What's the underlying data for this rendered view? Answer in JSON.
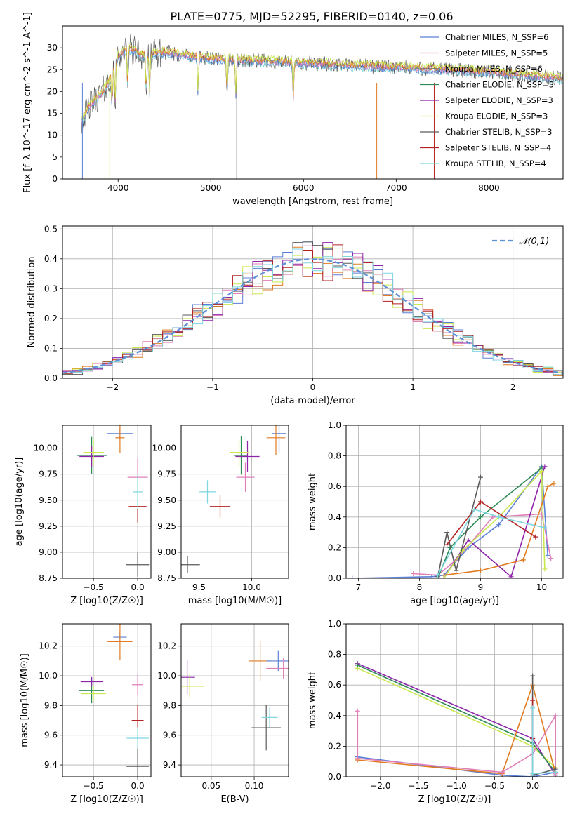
{
  "figure_title": "PLATE=0775, MJD=52295, FIBERID=0140, z=0.06",
  "colors": {
    "chabrier_miles": "#5b7fd6",
    "salpeter_miles": "#e07fb8",
    "kroupa_miles": "#555555",
    "chabrier_elodie": "#2e8b57",
    "salpeter_elodie": "#8e24aa",
    "kroupa_elodie": "#c9e84f",
    "chabrier_stelib": "#5a5a5a",
    "salpeter_stelib": "#b22222",
    "kroupa_stelib": "#7fd6e0",
    "orange": "#e07b22",
    "grid": "#b0b0b0"
  },
  "chart_data": [
    {
      "id": "spectrum",
      "type": "line",
      "xlabel": "wavelength [Angstrom, rest frame]",
      "ylabel": "Flux [f_λ 10^-17 erg cm^-2 s^-1 A^-1]",
      "xlim": [
        3400,
        8800
      ],
      "ylim": [
        0,
        35
      ],
      "xticks": [
        4000,
        5000,
        6000,
        7000,
        8000
      ],
      "yticks": [
        0,
        5,
        10,
        15,
        20,
        25,
        30
      ],
      "grid": false,
      "legend_position": "right",
      "legend": [
        "Chabrier MILES, N_SSP=6",
        "Salpeter MILES, N_SSP=5",
        "Kroupa MILES, N_SSP=6",
        "Chabrier ELODIE, N_SSP=3",
        "Salpeter ELODIE, N_SSP=3",
        "Kroupa ELODIE, N_SSP=3",
        "Chabrier STELIB, N_SSP=3",
        "Salpeter STELIB, N_SSP=4",
        "Kroupa STELIB, N_SSP=4"
      ],
      "continuum": [
        [
          3600,
          13
        ],
        [
          3700,
          17
        ],
        [
          3800,
          19
        ],
        [
          3900,
          22
        ],
        [
          4000,
          28
        ],
        [
          4100,
          30
        ],
        [
          4300,
          28
        ],
        [
          4500,
          29
        ],
        [
          4800,
          28
        ],
        [
          5000,
          27.5
        ],
        [
          5500,
          27
        ],
        [
          6000,
          26.5
        ],
        [
          6500,
          26
        ],
        [
          7000,
          25.5
        ],
        [
          7500,
          25
        ],
        [
          8000,
          24.5
        ],
        [
          8500,
          23.5
        ],
        [
          8800,
          23
        ]
      ]
    },
    {
      "id": "residual_histogram",
      "type": "line",
      "xlabel": "(data-model)/error",
      "ylabel": "Normed distribution",
      "xlim": [
        -2.5,
        2.5
      ],
      "ylim": [
        0,
        0.51
      ],
      "xticks": [
        -2,
        -1,
        0,
        1,
        2
      ],
      "yticks": [
        0.0,
        0.1,
        0.2,
        0.3,
        0.4,
        0.5
      ],
      "grid": true,
      "legend_position": "top-right",
      "legend": [
        "𝒩(0,1)"
      ],
      "reference_curve": "N(0,1)"
    },
    {
      "id": "age_vs_Z",
      "type": "scatter",
      "xlabel": "Z [log10(Z/Z☉)]",
      "ylabel": "age  [log10(age/yr)]",
      "xlim": [
        -0.85,
        0.15
      ],
      "ylim": [
        8.75,
        10.22
      ],
      "xticks": [
        -0.5,
        0.0
      ],
      "yticks": [
        8.75,
        9.0,
        9.25,
        9.5,
        9.75,
        10.0
      ],
      "grid": true,
      "points": [
        {
          "x": -0.2,
          "y": 10.14,
          "color": "chabrier_miles"
        },
        {
          "x": 0.0,
          "y": 9.72,
          "color": "salpeter_miles"
        },
        {
          "x": -0.52,
          "y": 9.93,
          "color": "chabrier_elodie"
        },
        {
          "x": -0.52,
          "y": 9.92,
          "color": "salpeter_elodie"
        },
        {
          "x": -0.5,
          "y": 9.96,
          "color": "kroupa_elodie"
        },
        {
          "x": -0.2,
          "y": 10.1,
          "color": "orange"
        },
        {
          "x": 0.0,
          "y": 8.88,
          "color": "chabrier_stelib"
        },
        {
          "x": 0.0,
          "y": 9.44,
          "color": "salpeter_stelib"
        },
        {
          "x": 0.0,
          "y": 9.58,
          "color": "kroupa_stelib"
        }
      ]
    },
    {
      "id": "age_vs_mass",
      "type": "scatter",
      "xlabel": "mass [log10(M/M☉)]",
      "ylabel": "",
      "xlim": [
        9.33,
        10.35
      ],
      "ylim": [
        8.75,
        10.22
      ],
      "xticks": [
        9.5,
        10.0
      ],
      "yticks": [
        8.75,
        9.0,
        9.25,
        9.5,
        9.75,
        10.0
      ],
      "grid": true,
      "points": [
        {
          "x": 10.26,
          "y": 10.14,
          "color": "chabrier_miles"
        },
        {
          "x": 9.94,
          "y": 9.72,
          "color": "salpeter_miles"
        },
        {
          "x": 9.9,
          "y": 9.93,
          "color": "chabrier_elodie"
        },
        {
          "x": 9.96,
          "y": 9.92,
          "color": "salpeter_elodie"
        },
        {
          "x": 9.88,
          "y": 9.96,
          "color": "kroupa_elodie"
        },
        {
          "x": 10.23,
          "y": 10.1,
          "color": "orange"
        },
        {
          "x": 9.39,
          "y": 8.88,
          "color": "chabrier_stelib"
        },
        {
          "x": 9.7,
          "y": 9.44,
          "color": "salpeter_stelib"
        },
        {
          "x": 9.58,
          "y": 9.58,
          "color": "kroupa_stelib"
        }
      ]
    },
    {
      "id": "massweight_vs_age",
      "type": "line",
      "xlabel": "age  [log10(age/yr)]",
      "ylabel": "mass weight",
      "xlim": [
        6.8,
        10.35
      ],
      "ylim": [
        0,
        1.0
      ],
      "xticks": [
        7,
        8,
        9,
        10
      ],
      "yticks": [
        0.0,
        0.2,
        0.4,
        0.6,
        0.8,
        1.0
      ],
      "grid": true,
      "series": [
        {
          "color": "chabrier_miles",
          "x": [
            6.9,
            8.2,
            8.4,
            8.8,
            9.3,
            10.0,
            10.1
          ],
          "y": [
            0.0,
            0.01,
            0.02,
            0.2,
            0.35,
            0.73,
            0.15
          ]
        },
        {
          "color": "salpeter_miles",
          "x": [
            7.9,
            8.3,
            8.6,
            9.2,
            10.0,
            10.15
          ],
          "y": [
            0.03,
            0.02,
            0.12,
            0.4,
            0.42,
            0.13
          ]
        },
        {
          "color": "chabrier_elodie",
          "x": [
            8.3,
            8.5,
            9.0,
            10.0
          ],
          "y": [
            0.0,
            0.2,
            0.4,
            0.72
          ]
        },
        {
          "color": "salpeter_elodie",
          "x": [
            8.4,
            8.8,
            9.5,
            10.05
          ],
          "y": [
            0.0,
            0.25,
            0.01,
            0.73
          ]
        },
        {
          "color": "kroupa_elodie",
          "x": [
            8.4,
            8.7,
            9.3,
            10.0,
            10.05
          ],
          "y": [
            0.0,
            0.18,
            0.4,
            0.7,
            0.06
          ]
        },
        {
          "color": "orange",
          "x": [
            8.4,
            9.0,
            9.7,
            10.1,
            10.2
          ],
          "y": [
            0.02,
            0.05,
            0.12,
            0.6,
            0.62
          ]
        },
        {
          "color": "chabrier_stelib",
          "x": [
            8.3,
            8.45,
            8.6,
            9.0
          ],
          "y": [
            0.01,
            0.3,
            0.05,
            0.66
          ]
        },
        {
          "color": "salpeter_stelib",
          "x": [
            8.45,
            9.0,
            9.9
          ],
          "y": [
            0.22,
            0.5,
            0.27
          ]
        },
        {
          "color": "kroupa_stelib",
          "x": [
            8.3,
            8.9,
            9.3,
            10.05
          ],
          "y": [
            0.02,
            0.45,
            0.4,
            0.33
          ]
        }
      ]
    },
    {
      "id": "mass_vs_Z",
      "type": "scatter",
      "xlabel": "Z [log10(Z/Z☉)]",
      "ylabel": "mass [log10(M/M☉)]",
      "xlim": [
        -0.85,
        0.15
      ],
      "ylim": [
        9.32,
        10.35
      ],
      "xticks": [
        -0.5,
        0.0
      ],
      "yticks": [
        9.4,
        9.6,
        9.8,
        10.0,
        10.2
      ],
      "grid": true,
      "points": [
        {
          "x": -0.2,
          "y": 10.26,
          "color": "chabrier_miles"
        },
        {
          "x": 0.0,
          "y": 9.94,
          "color": "salpeter_miles"
        },
        {
          "x": -0.52,
          "y": 9.9,
          "color": "chabrier_elodie"
        },
        {
          "x": -0.52,
          "y": 9.96,
          "color": "salpeter_elodie"
        },
        {
          "x": -0.5,
          "y": 9.88,
          "color": "kroupa_elodie"
        },
        {
          "x": -0.2,
          "y": 10.23,
          "color": "orange"
        },
        {
          "x": 0.0,
          "y": 9.39,
          "color": "chabrier_stelib"
        },
        {
          "x": 0.0,
          "y": 9.7,
          "color": "salpeter_stelib"
        },
        {
          "x": 0.0,
          "y": 9.58,
          "color": "kroupa_stelib"
        }
      ]
    },
    {
      "id": "mass_vs_ebv",
      "type": "scatter",
      "xlabel": "E(B-V)",
      "ylabel": "",
      "xlim": [
        0.015,
        0.14
      ],
      "ylim": [
        9.32,
        10.35
      ],
      "xticks": [
        0.05,
        0.1
      ],
      "yticks": [
        9.4,
        9.6,
        9.8,
        10.0,
        10.2
      ],
      "grid": true,
      "points": [
        {
          "x": 0.022,
          "y": 9.99,
          "color": "salpeter_elodie"
        },
        {
          "x": 0.025,
          "y": 9.93,
          "color": "kroupa_elodie"
        },
        {
          "x": 0.107,
          "y": 10.1,
          "color": "orange"
        },
        {
          "x": 0.114,
          "y": 9.65,
          "color": "chabrier_stelib"
        },
        {
          "x": 0.118,
          "y": 9.72,
          "color": "kroupa_stelib"
        },
        {
          "x": 0.128,
          "y": 10.1,
          "color": "chabrier_miles"
        },
        {
          "x": 0.134,
          "y": 10.05,
          "color": "salpeter_miles"
        }
      ]
    },
    {
      "id": "massweight_vs_Z",
      "type": "line",
      "xlabel": "Z [log10(Z/Z☉)]",
      "ylabel": "mass weight",
      "xlim": [
        -2.45,
        0.4
      ],
      "ylim": [
        0,
        1.0
      ],
      "xticks": [
        -2.0,
        -1.5,
        -1.0,
        -0.5,
        0.0
      ],
      "yticks": [
        0.0,
        0.2,
        0.4,
        0.6,
        0.8,
        1.0
      ],
      "grid": true,
      "series": [
        {
          "color": "salpeter_elodie",
          "x": [
            -2.3,
            0.0,
            0.3
          ],
          "y": [
            0.74,
            0.25,
            0.01
          ]
        },
        {
          "color": "kroupa_elodie",
          "x": [
            -2.3,
            0.0,
            0.3
          ],
          "y": [
            0.71,
            0.2,
            0.06
          ]
        },
        {
          "color": "chabrier_elodie",
          "x": [
            -2.3,
            0.0,
            0.3
          ],
          "y": [
            0.73,
            0.22,
            0.03
          ]
        },
        {
          "color": "chabrier_miles",
          "x": [
            -2.3,
            -0.4,
            0.0,
            0.3
          ],
          "y": [
            0.13,
            0.01,
            0.0,
            0.03
          ]
        },
        {
          "color": "orange",
          "x": [
            -2.3,
            -0.4,
            0.0,
            0.3
          ],
          "y": [
            0.11,
            0.02,
            0.6,
            0.02
          ]
        },
        {
          "color": "salpeter_miles",
          "x": [
            -2.3,
            -2.3,
            -0.4,
            0.0,
            0.3,
            0.3
          ],
          "y": [
            0.43,
            0.12,
            0.03,
            0.15,
            0.4,
            0.02
          ]
        },
        {
          "color": "chabrier_stelib",
          "x": [
            0.0,
            0.0,
            0.3
          ],
          "y": [
            0.66,
            0.01,
            0.05
          ]
        },
        {
          "color": "salpeter_stelib",
          "x": [
            0.0,
            0.0
          ],
          "y": [
            0.5,
            0.25
          ]
        },
        {
          "color": "kroupa_stelib",
          "x": [
            0.0,
            0.0,
            0.3
          ],
          "y": [
            0.45,
            0.02,
            0.03
          ]
        }
      ]
    }
  ]
}
